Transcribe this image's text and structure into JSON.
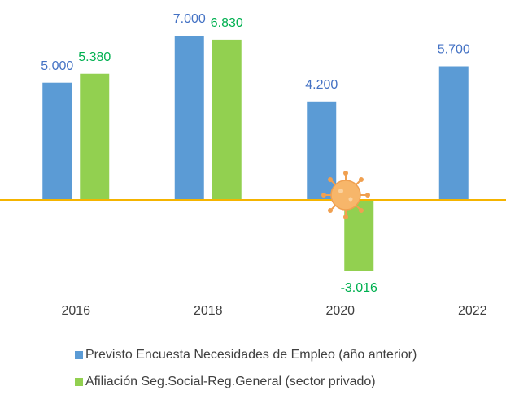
{
  "chart_data": {
    "type": "bar",
    "categories": [
      "2016",
      "2018",
      "2020",
      "2022"
    ],
    "series": [
      {
        "name": "Previsto Encuesta Necesidades de Empleo (año anterior)",
        "color": "#5b9bd5",
        "label_color": "#4472c4",
        "values": [
          5000,
          7000,
          4200,
          5700
        ],
        "value_labels": [
          "5.000",
          "7.000",
          "4.200",
          "5.700"
        ]
      },
      {
        "name": "Afiliación Seg.Social-Reg.General (sector privado)",
        "color": "#92d050",
        "label_color": "#00b050",
        "values": [
          5380,
          6830,
          -3016,
          null
        ],
        "value_labels": [
          "5.380",
          "6.830",
          "-3.016",
          null
        ]
      }
    ],
    "ylim": [
      -4000,
      7000
    ],
    "zero_line_color": "#f5b400",
    "legend": "bottom"
  }
}
